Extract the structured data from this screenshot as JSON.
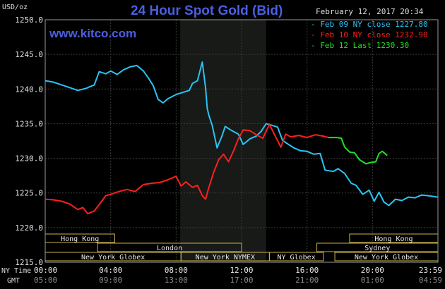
{
  "header": {
    "title": "24 Hour Spot Gold (Bid)",
    "site": "www.kitco.com",
    "unit": "USD/oz",
    "timestamp": "February 12, 2017 20:34"
  },
  "legend": [
    {
      "label": "- Feb 09 NY close 1227.80",
      "color": "#29c4f5"
    },
    {
      "label": "- Feb 10 NY close 1232.90",
      "color": "#ff1f1f"
    },
    {
      "label": "- Feb 12 Last 1230.30",
      "color": "#22e022"
    }
  ],
  "timezones": {
    "primary": "NY Time",
    "secondary": "GMT"
  },
  "chart_data": {
    "type": "line",
    "y_ticks": [
      "1250.0",
      "1245.0",
      "1240.0",
      "1235.0",
      "1230.0",
      "1225.0",
      "1220.0",
      "1215.0"
    ],
    "ylim": [
      1215,
      1250
    ],
    "xlim": [
      0,
      24
    ],
    "x_ticks": [
      {
        "ny": "00:00",
        "gmt": "05:00"
      },
      {
        "ny": "04:00",
        "gmt": "09:00"
      },
      {
        "ny": "08:00",
        "gmt": "13:00"
      },
      {
        "ny": "12:00",
        "gmt": "17:00"
      },
      {
        "ny": "16:00",
        "gmt": "21:00"
      },
      {
        "ny": "20:00",
        "gmt": "01:00"
      },
      {
        "ny": "23:59",
        "gmt": "04:59"
      }
    ],
    "grid": true,
    "shaded_session": [
      8.25,
      13.5
    ],
    "series": [
      {
        "name": "Feb 09 NY close 1227.80",
        "color": "#29c4f5",
        "points": [
          [
            0,
            1241.2
          ],
          [
            0.5,
            1241.0
          ],
          [
            1,
            1240.6
          ],
          [
            1.5,
            1240.2
          ],
          [
            2,
            1239.8
          ],
          [
            2.5,
            1240.1
          ],
          [
            3,
            1240.6
          ],
          [
            3.3,
            1242.5
          ],
          [
            3.7,
            1242.2
          ],
          [
            4,
            1242.6
          ],
          [
            4.4,
            1242.1
          ],
          [
            4.8,
            1242.8
          ],
          [
            5.2,
            1243.2
          ],
          [
            5.6,
            1243.4
          ],
          [
            6,
            1242.6
          ],
          [
            6.3,
            1241.6
          ],
          [
            6.6,
            1240.5
          ],
          [
            6.9,
            1238.5
          ],
          [
            7.2,
            1238.0
          ],
          [
            7.5,
            1238.6
          ],
          [
            8,
            1239.2
          ],
          [
            8.4,
            1239.5
          ],
          [
            8.8,
            1239.8
          ],
          [
            9,
            1240.8
          ],
          [
            9.3,
            1241.2
          ],
          [
            9.6,
            1243.9
          ],
          [
            9.8,
            1240.2
          ],
          [
            9.9,
            1237.2
          ],
          [
            10,
            1236.2
          ],
          [
            10.2,
            1234.8
          ],
          [
            10.5,
            1231.5
          ],
          [
            10.8,
            1233.2
          ],
          [
            11,
            1234.6
          ],
          [
            11.4,
            1234.0
          ],
          [
            11.8,
            1233.5
          ],
          [
            12.1,
            1232.0
          ],
          [
            12.5,
            1232.8
          ],
          [
            12.9,
            1233.2
          ],
          [
            13.2,
            1233.9
          ],
          [
            13.5,
            1235.0
          ],
          [
            13.8,
            1234.8
          ],
          [
            14.2,
            1234.5
          ],
          [
            14.5,
            1232.6
          ],
          [
            14.8,
            1232.1
          ],
          [
            15.2,
            1231.5
          ],
          [
            15.6,
            1231.1
          ],
          [
            16,
            1231.0
          ],
          [
            16.4,
            1230.6
          ],
          [
            16.8,
            1230.7
          ],
          [
            17.1,
            1228.3
          ],
          [
            17.6,
            1228.1
          ],
          [
            17.9,
            1228.5
          ],
          [
            18.3,
            1227.8
          ],
          [
            18.7,
            1226.4
          ],
          [
            19,
            1226.1
          ],
          [
            19.4,
            1224.8
          ],
          [
            19.8,
            1225.4
          ],
          [
            20.1,
            1223.8
          ],
          [
            20.4,
            1225.1
          ],
          [
            20.7,
            1223.7
          ],
          [
            21,
            1223.2
          ],
          [
            21.4,
            1224.1
          ],
          [
            21.8,
            1223.9
          ],
          [
            22.2,
            1224.4
          ],
          [
            22.6,
            1224.3
          ],
          [
            23,
            1224.7
          ],
          [
            23.4,
            1224.6
          ],
          [
            23.98,
            1224.4
          ]
        ]
      },
      {
        "name": "Feb 10 NY close 1232.90",
        "color": "#ff1f1f",
        "points": [
          [
            0,
            1224.1
          ],
          [
            0.5,
            1224.0
          ],
          [
            1,
            1223.8
          ],
          [
            1.5,
            1223.4
          ],
          [
            2,
            1222.6
          ],
          [
            2.3,
            1222.9
          ],
          [
            2.6,
            1222.0
          ],
          [
            3,
            1222.4
          ],
          [
            3.3,
            1223.3
          ],
          [
            3.7,
            1224.6
          ],
          [
            4,
            1224.8
          ],
          [
            4.5,
            1225.2
          ],
          [
            5,
            1225.5
          ],
          [
            5.5,
            1225.2
          ],
          [
            6,
            1226.2
          ],
          [
            6.5,
            1226.4
          ],
          [
            7,
            1226.5
          ],
          [
            7.5,
            1226.9
          ],
          [
            8,
            1227.4
          ],
          [
            8.3,
            1226.0
          ],
          [
            8.6,
            1226.6
          ],
          [
            9,
            1225.8
          ],
          [
            9.3,
            1226.1
          ],
          [
            9.6,
            1224.6
          ],
          [
            9.8,
            1224.1
          ],
          [
            10,
            1225.8
          ],
          [
            10.3,
            1228.0
          ],
          [
            10.6,
            1229.8
          ],
          [
            10.9,
            1230.6
          ],
          [
            11.2,
            1229.5
          ],
          [
            11.5,
            1231.0
          ],
          [
            11.8,
            1232.8
          ],
          [
            12.1,
            1234.1
          ],
          [
            12.5,
            1234.0
          ],
          [
            12.9,
            1233.4
          ],
          [
            13.3,
            1232.9
          ],
          [
            13.7,
            1234.9
          ],
          [
            14.1,
            1233.0
          ],
          [
            14.4,
            1231.6
          ],
          [
            14.7,
            1233.5
          ],
          [
            15,
            1233.1
          ],
          [
            15.5,
            1233.3
          ],
          [
            16,
            1233.0
          ],
          [
            16.5,
            1233.4
          ],
          [
            17,
            1233.2
          ],
          [
            17.3,
            1233.0
          ]
        ]
      },
      {
        "name": "Feb 12 Last 1230.30",
        "color": "#22e022",
        "points": [
          [
            17.3,
            1233.0
          ],
          [
            17.8,
            1233.0
          ],
          [
            18.1,
            1232.9
          ],
          [
            18.3,
            1231.6
          ],
          [
            18.6,
            1230.9
          ],
          [
            18.9,
            1230.8
          ],
          [
            19.2,
            1229.8
          ],
          [
            19.6,
            1229.2
          ],
          [
            19.9,
            1229.4
          ],
          [
            20.2,
            1229.5
          ],
          [
            20.4,
            1230.7
          ],
          [
            20.6,
            1231.0
          ],
          [
            20.9,
            1230.4
          ]
        ]
      }
    ],
    "sessions": [
      {
        "label": "Hong Kong",
        "start": 0,
        "end": 4.25,
        "row": 0
      },
      {
        "label": "Hong Kong",
        "start": 18.6,
        "end": 24,
        "row": 0
      },
      {
        "label": "London",
        "start": 3.2,
        "end": 12.0,
        "row": 1
      },
      {
        "label": "Sydney",
        "start": 16.6,
        "end": 24,
        "row": 1
      },
      {
        "label": "New York Globex",
        "start": 0,
        "end": 8.3,
        "row": 2
      },
      {
        "label": "New York NYMEX",
        "start": 8.3,
        "end": 13.7,
        "row": 2
      },
      {
        "label": "NY Globex",
        "start": 13.7,
        "end": 17.0,
        "row": 2
      },
      {
        "label": "New York Globex",
        "start": 17.7,
        "end": 24,
        "row": 2
      }
    ]
  }
}
